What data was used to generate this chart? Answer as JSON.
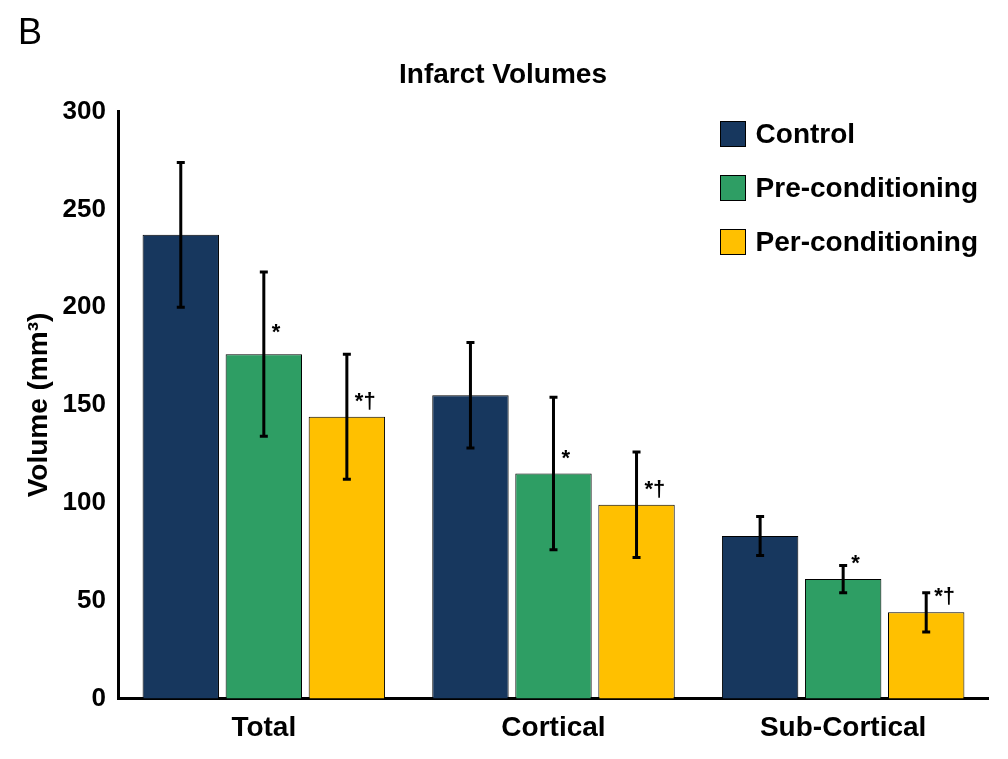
{
  "chart_data": {
    "type": "bar",
    "title": "Infarct Volumes",
    "ylabel": "Volume (mm³)",
    "categories": [
      "Total",
      "Cortical",
      "Sub-Cortical"
    ],
    "series": [
      {
        "name": "Control",
        "color": "#17375e",
        "values": [
          237,
          155,
          83
        ],
        "errors": [
          37,
          27,
          10
        ]
      },
      {
        "name": "Pre-conditioning",
        "color": "#2e9e64",
        "values": [
          176,
          115,
          61
        ],
        "errors": [
          42,
          39,
          7
        ],
        "value_labels": [
          "*",
          "*",
          "*"
        ]
      },
      {
        "name": "Per-conditioning",
        "color": "#ffc000",
        "values": [
          144,
          99,
          44
        ],
        "errors": [
          32,
          27,
          10
        ],
        "value_labels": [
          "*†",
          "*†",
          "*†"
        ]
      }
    ],
    "ylim": [
      0,
      300
    ],
    "yticks": [
      0,
      50,
      100,
      150,
      200,
      250,
      300
    ],
    "grid": false,
    "legend": "top right",
    "annotations": [
      "B"
    ]
  }
}
